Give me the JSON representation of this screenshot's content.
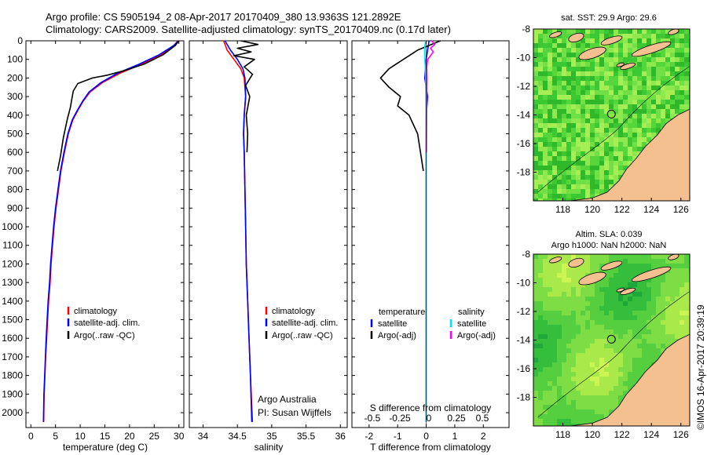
{
  "header": {
    "line1": "Argo profile: CS 5905194_2 08-Apr-2017 20170409_380 13.9363S 121.2892E",
    "line2": "Climatology: CARS2009. Satellite-adjusted climatology: synTS_20170409.nc (0.17d later)"
  },
  "colors": {
    "climatology": "#ff0000",
    "satellite": "#0000ff",
    "argo": "#000000",
    "sal_satellite": "#00e5ff",
    "sal_argo": "#ff00ff",
    "land": "#f5c090"
  },
  "chart_data": [
    {
      "id": "temperature",
      "type": "line",
      "xlabel": "temperature (deg C)",
      "ylabel": "",
      "xlim": [
        -1,
        31
      ],
      "xticks": [
        0,
        5,
        10,
        15,
        20,
        25,
        30
      ],
      "ylim": [
        2080,
        0
      ],
      "yticks": [
        0,
        100,
        200,
        300,
        400,
        500,
        600,
        700,
        800,
        900,
        1000,
        1100,
        1200,
        1300,
        1400,
        1500,
        1600,
        1700,
        1800,
        1900,
        2000
      ],
      "legend": {
        "placement": "bottom-center",
        "entries": [
          "climatology",
          "satellite-adj. clim.",
          "Argo(..raw -QC)"
        ]
      },
      "series": [
        {
          "name": "climatology",
          "color": "#ff0000",
          "x": [
            29.8,
            29.0,
            26.5,
            22.5,
            18.0,
            14.5,
            12.0,
            10.6,
            9.5,
            8.5,
            7.6,
            6.8,
            6.1,
            5.6,
            5.1,
            4.7,
            4.4,
            4.1,
            3.9,
            3.6,
            3.4,
            3.2,
            3.0,
            2.85,
            2.7,
            2.6
          ],
          "y": [
            0,
            25,
            75,
            125,
            175,
            225,
            275,
            325,
            375,
            425,
            500,
            600,
            700,
            800,
            900,
            1000,
            1100,
            1200,
            1300,
            1400,
            1500,
            1600,
            1700,
            1800,
            1900,
            2050
          ]
        },
        {
          "name": "satellite-adj. clim.",
          "color": "#0000ff",
          "x": [
            29.9,
            29.0,
            26.0,
            22.0,
            17.5,
            14.2,
            11.8,
            10.5,
            9.4,
            8.4,
            7.5,
            6.7,
            6.0,
            5.5,
            5.0,
            4.6,
            4.3,
            4.0,
            3.8,
            3.5,
            3.3,
            3.1,
            2.95,
            2.8,
            2.65,
            2.55
          ],
          "y": [
            0,
            25,
            75,
            125,
            175,
            225,
            275,
            325,
            375,
            425,
            500,
            600,
            700,
            800,
            900,
            1000,
            1100,
            1200,
            1300,
            1400,
            1500,
            1600,
            1700,
            1800,
            1900,
            2050
          ]
        },
        {
          "name": "Argo(..raw -QC)",
          "color": "#000000",
          "x": [
            30.0,
            29.3,
            26.8,
            23.0,
            19.0,
            15.5,
            12.5,
            9.5,
            8.6,
            8.4,
            8.0,
            7.4,
            6.6,
            6.0,
            5.4
          ],
          "y": [
            0,
            25,
            75,
            125,
            160,
            185,
            200,
            230,
            270,
            300,
            360,
            420,
            520,
            620,
            700
          ]
        }
      ]
    },
    {
      "id": "salinity",
      "type": "line",
      "xlabel": "salinity",
      "xlim": [
        33.8,
        36.1
      ],
      "xticks": [
        34,
        34.5,
        35,
        35.5,
        36
      ],
      "ylim": [
        2080,
        0
      ],
      "legend": {
        "placement": "bottom-center",
        "entries": [
          "climatology",
          "satellite-adj. clim.",
          "Argo(..raw -QC)"
        ]
      },
      "annotation": [
        "Argo Australia",
        "PI: Susan Wijffels"
      ],
      "series": [
        {
          "name": "climatology",
          "color": "#ff0000",
          "x": [
            34.3,
            34.35,
            34.45,
            34.55,
            34.6,
            34.62,
            34.6,
            34.59,
            34.6,
            34.61,
            34.62,
            34.63,
            34.65,
            34.67,
            34.69,
            34.72
          ],
          "y": [
            0,
            50,
            100,
            150,
            200,
            300,
            400,
            500,
            600,
            800,
            1000,
            1200,
            1400,
            1600,
            1800,
            2050
          ]
        },
        {
          "name": "satellite-adj. clim.",
          "color": "#0000ff",
          "x": [
            34.32,
            34.4,
            34.5,
            34.58,
            34.61,
            34.62,
            34.6,
            34.59,
            34.6,
            34.61,
            34.62,
            34.63,
            34.65,
            34.67,
            34.69,
            34.71
          ],
          "y": [
            0,
            50,
            100,
            150,
            200,
            300,
            400,
            500,
            600,
            800,
            1000,
            1200,
            1400,
            1600,
            1800,
            2050
          ]
        },
        {
          "name": "Argo(..raw -QC)",
          "color": "#000000",
          "x": [
            34.55,
            34.8,
            34.5,
            34.7,
            34.45,
            34.75,
            34.6,
            34.72,
            34.62,
            34.68,
            34.63,
            34.65,
            34.64
          ],
          "y": [
            0,
            20,
            40,
            60,
            80,
            100,
            140,
            180,
            240,
            300,
            400,
            500,
            600
          ]
        }
      ]
    },
    {
      "id": "difference",
      "type": "line",
      "xlabel": "T difference from climatology",
      "xlabel_top": "S difference from climatology",
      "xlim": [
        -2.6,
        2.9
      ],
      "xticks": [
        -2,
        -1,
        0,
        1,
        2
      ],
      "xticks_top": [
        "-0.5",
        "-0.25",
        "0",
        "0.25",
        "0.5"
      ],
      "ylim": [
        2080,
        0
      ],
      "legend": {
        "placement": "bottom-center",
        "headers": [
          "temperature",
          "salinity"
        ],
        "entries": [
          "satellite",
          "Argo(-adj)",
          "satellite",
          "Argo(-adj)"
        ]
      },
      "series": [
        {
          "name": "temperature satellite",
          "color": "#0000ff",
          "x": [
            0.1,
            0.0,
            -0.05,
            0.05,
            0.0,
            0.0,
            0.0,
            0.0,
            0.0,
            0.0,
            0.0
          ],
          "y": [
            0,
            100,
            200,
            300,
            400,
            600,
            800,
            1000,
            1400,
            1800,
            2050
          ]
        },
        {
          "name": "temperature Argo(-adj)",
          "color": "#000000",
          "x": [
            0.5,
            -0.3,
            -0.8,
            -1.3,
            -1.6,
            -1.3,
            -0.9,
            -1.0,
            -0.6,
            -0.3,
            -0.2,
            -0.1
          ],
          "y": [
            0,
            50,
            100,
            150,
            200,
            250,
            300,
            350,
            400,
            500,
            600,
            700
          ]
        },
        {
          "name": "salinity satellite",
          "color": "#00e5ff",
          "x": [
            -0.03,
            -0.06,
            -0.05,
            -0.03,
            -0.02,
            -0.01,
            0.0,
            0.0,
            0.0,
            0.0
          ],
          "y": [
            0,
            50,
            100,
            150,
            200,
            300,
            500,
            800,
            1200,
            2050
          ]
        },
        {
          "name": "salinity Argo(-adj)",
          "color": "#ff00ff",
          "x": [
            0.2,
            0.3,
            0.15,
            0.25,
            0.05,
            0.02,
            0.03,
            0.02,
            0.01
          ],
          "y": [
            0,
            20,
            40,
            60,
            100,
            140,
            200,
            300,
            600
          ]
        }
      ]
    },
    {
      "id": "sst_map",
      "type": "heatmap",
      "title": "sat. SST: 29.9 Argo: 29.6",
      "xlim": [
        116,
        126.6
      ],
      "xticks": [
        118,
        120,
        122,
        124,
        126
      ],
      "ylim": [
        -20,
        -8
      ],
      "yticks": [
        -8,
        -10,
        -12,
        -14,
        -16,
        -18
      ],
      "marker": {
        "lon": 121.29,
        "lat": -13.94
      }
    },
    {
      "id": "sla_map",
      "type": "heatmap",
      "title_line1": "Altim. SLA: 0.039",
      "title_line2": "Argo h1000: NaN h2000: NaN",
      "xlim": [
        116,
        126.6
      ],
      "xticks": [
        118,
        120,
        122,
        124,
        126
      ],
      "ylim": [
        -20,
        -8
      ],
      "yticks": [
        -8,
        -10,
        -12,
        -14,
        -16,
        -18
      ],
      "marker": {
        "lon": 121.29,
        "lat": -13.94
      }
    }
  ],
  "credit": "©IMOS 16-Apr-2017 20:39:19"
}
